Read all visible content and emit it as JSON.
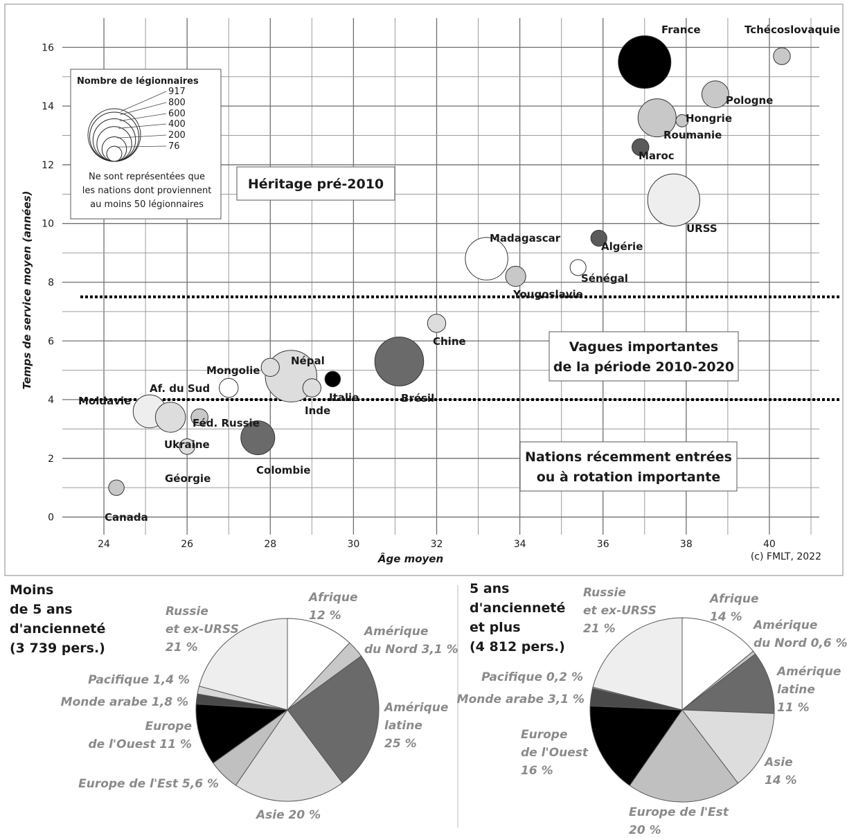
{
  "chart_data": [
    {
      "type": "scatter",
      "title": "",
      "xlabel": "Âge moyen",
      "ylabel": "Temps de service moyen (années)",
      "xlim": [
        23,
        41.2
      ],
      "ylim": [
        -0.6,
        17
      ],
      "xticks": [
        24,
        26,
        28,
        30,
        32,
        34,
        36,
        38,
        40
      ],
      "yticks": [
        0,
        2,
        4,
        6,
        8,
        10,
        12,
        14,
        16
      ],
      "credit": "(c) FMLT, 2022",
      "thresholds": [
        7.5,
        4.0
      ],
      "zone_labels": [
        {
          "lines": [
            "Héritage pré-2010"
          ]
        },
        {
          "lines": [
            "Vagues importantes",
            "de la période 2010-2020"
          ]
        },
        {
          "lines": [
            "Nations récemment entrées",
            "ou à rotation importante"
          ]
        }
      ],
      "size_legend": {
        "title": "Nombre de légionnaires",
        "values": [
          917,
          800,
          600,
          400,
          200,
          76
        ],
        "note": [
          "Ne sont représentées que",
          "les nations dont proviennent",
          "au moins 50 légionnaires"
        ]
      },
      "points": [
        {
          "name": "France",
          "x": 37.0,
          "y": 15.5,
          "count": 917,
          "fill": "#000000"
        },
        {
          "name": "Tchécoslovaquie",
          "x": 40.3,
          "y": 15.7,
          "count": 95,
          "fill": "#c8c8c8"
        },
        {
          "name": "Pologne",
          "x": 38.7,
          "y": 14.4,
          "count": 240,
          "fill": "#c8c8c8"
        },
        {
          "name": "Roumanie",
          "x": 37.3,
          "y": 13.6,
          "count": 480,
          "fill": "#c8c8c8"
        },
        {
          "name": "Hongrie",
          "x": 37.9,
          "y": 13.5,
          "count": 50,
          "fill": "#c8c8c8"
        },
        {
          "name": "Maroc",
          "x": 36.9,
          "y": 12.6,
          "count": 95,
          "fill": "#5a5a5a"
        },
        {
          "name": "URSS",
          "x": 37.7,
          "y": 10.8,
          "count": 900,
          "fill": "#eeeeee"
        },
        {
          "name": "Madagascar",
          "x": 33.2,
          "y": 8.8,
          "count": 600,
          "fill": "#ffffff"
        },
        {
          "name": "Algérie",
          "x": 35.9,
          "y": 9.5,
          "count": 85,
          "fill": "#5a5a5a"
        },
        {
          "name": "Sénégal",
          "x": 35.4,
          "y": 8.5,
          "count": 85,
          "fill": "#ffffff"
        },
        {
          "name": "Yougoslavie",
          "x": 33.9,
          "y": 8.2,
          "count": 135,
          "fill": "#c8c8c8"
        },
        {
          "name": "Chine",
          "x": 32.0,
          "y": 6.6,
          "count": 110,
          "fill": "#dddddd"
        },
        {
          "name": "Brésil",
          "x": 31.1,
          "y": 5.3,
          "count": 790,
          "fill": "#6a6a6a"
        },
        {
          "name": "Népal",
          "x": 28.5,
          "y": 4.8,
          "count": 880,
          "fill": "#dddddd"
        },
        {
          "name": "Italie",
          "x": 29.5,
          "y": 4.7,
          "count": 80,
          "fill": "#000000"
        },
        {
          "name": "Inde",
          "x": 29.0,
          "y": 4.4,
          "count": 110,
          "fill": "#dddddd"
        },
        {
          "name": "Mongolie",
          "x": 28.0,
          "y": 5.1,
          "count": 110,
          "fill": "#dddddd"
        },
        {
          "name": "Af. du Sud",
          "x": 27.0,
          "y": 4.4,
          "count": 120,
          "fill": "#ffffff"
        },
        {
          "name": "Moldavie",
          "x": 25.1,
          "y": 3.6,
          "count": 360,
          "fill": "#eeeeee"
        },
        {
          "name": "Ukraine",
          "x": 25.6,
          "y": 3.4,
          "count": 300,
          "fill": "#dddddd"
        },
        {
          "name": "Féd. Russie",
          "x": 26.3,
          "y": 3.4,
          "count": 95,
          "fill": "#c8c8c8"
        },
        {
          "name": "Colombie",
          "x": 27.7,
          "y": 2.7,
          "count": 380,
          "fill": "#6a6a6a"
        },
        {
          "name": "Géorgie",
          "x": 26.0,
          "y": 2.4,
          "count": 80,
          "fill": "#dddddd"
        },
        {
          "name": "Canada",
          "x": 24.3,
          "y": 1.0,
          "count": 80,
          "fill": "#c8c8c8"
        }
      ]
    },
    {
      "type": "pie",
      "title": [
        "Moins",
        "de 5 ans",
        "d'ancienneté",
        "(3 739 pers.)"
      ],
      "slices": [
        {
          "name": "Afrique",
          "label": [
            "Afrique",
            "12 %"
          ],
          "value": 12,
          "fill": "#ffffff"
        },
        {
          "name": "Amérique du Nord",
          "label": [
            "Amérique",
            "du Nord 3,1 %"
          ],
          "value": 3.1,
          "fill": "#c8c8c8"
        },
        {
          "name": "Amérique latine",
          "label": [
            "Amérique",
            "latine",
            "25 %"
          ],
          "value": 25,
          "fill": "#6a6a6a"
        },
        {
          "name": "Asie",
          "label": [
            "Asie 20 %"
          ],
          "value": 20,
          "fill": "#dddddd"
        },
        {
          "name": "Europe de l'Est",
          "label": [
            "Europe de l'Est 5,6 %"
          ],
          "value": 5.6,
          "fill": "#c0c0c0"
        },
        {
          "name": "Europe de l'Ouest",
          "label": [
            "Europe",
            "de l'Ouest 11 %"
          ],
          "value": 11,
          "fill": "#000000"
        },
        {
          "name": "Monde arabe",
          "label": [
            "Monde arabe 1,8 %"
          ],
          "value": 1.8,
          "fill": "#4a4a4a"
        },
        {
          "name": "Pacifique",
          "label": [
            "Pacifique 1,4 %"
          ],
          "value": 1.4,
          "fill": "#d8d8d8"
        },
        {
          "name": "Russie et ex-URSS",
          "label": [
            "Russie",
            "et ex-URSS",
            "21 %"
          ],
          "value": 21,
          "fill": "#eeeeee"
        }
      ]
    },
    {
      "type": "pie",
      "title": [
        "5 ans",
        "d'ancienneté",
        "et plus",
        "(4 812 pers.)"
      ],
      "slices": [
        {
          "name": "Afrique",
          "label": [
            "Afrique",
            "14 %"
          ],
          "value": 14,
          "fill": "#ffffff"
        },
        {
          "name": "Amérique du Nord",
          "label": [
            "Amérique",
            "du Nord 0,6 %"
          ],
          "value": 0.6,
          "fill": "#c8c8c8"
        },
        {
          "name": "Amérique latine",
          "label": [
            "Amérique",
            "latine",
            "11 %"
          ],
          "value": 11,
          "fill": "#6a6a6a"
        },
        {
          "name": "Asie",
          "label": [
            "Asie",
            "14 %"
          ],
          "value": 14,
          "fill": "#dddddd"
        },
        {
          "name": "Europe de l'Est",
          "label": [
            "Europe  de l'Est",
            "20 %"
          ],
          "value": 20,
          "fill": "#c0c0c0"
        },
        {
          "name": "Europe de l'Ouest",
          "label": [
            "Europe",
            "de l'Ouest",
            "16 %"
          ],
          "value": 16,
          "fill": "#000000"
        },
        {
          "name": "Monde arabe",
          "label": [
            "Monde arabe 3,1 %"
          ],
          "value": 3.1,
          "fill": "#4a4a4a"
        },
        {
          "name": "Pacifique",
          "label": [
            "Pacifique 0,2 %"
          ],
          "value": 0.2,
          "fill": "#d8d8d8"
        },
        {
          "name": "Russie et ex-URSS",
          "label": [
            "Russie",
            "et ex-URSS",
            "21 %"
          ],
          "value": 21,
          "fill": "#eeeeee"
        }
      ]
    }
  ]
}
